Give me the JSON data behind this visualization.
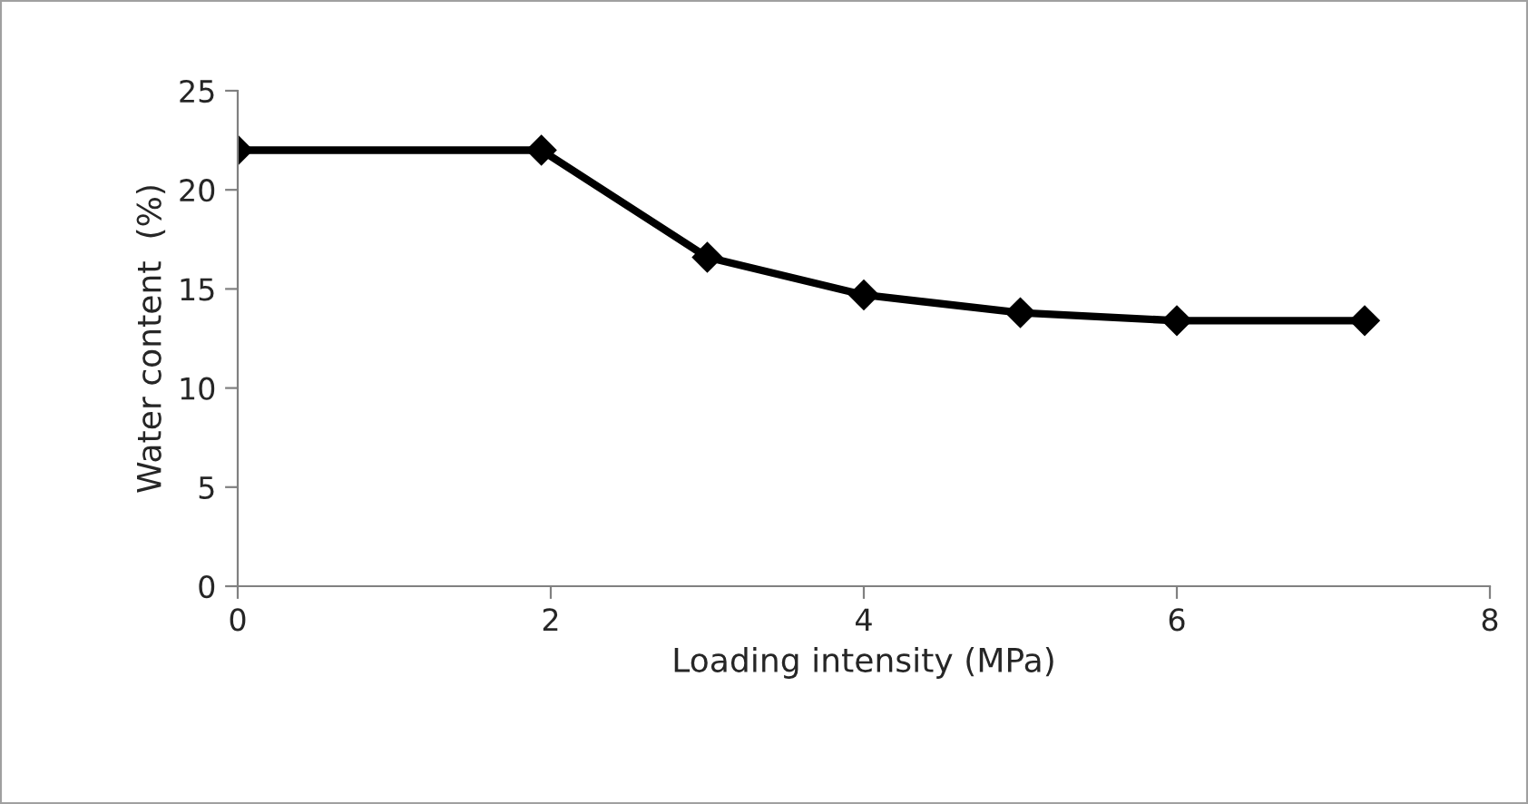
{
  "chart_data": {
    "type": "line",
    "xlabel": "Loading intensity (MPa)",
    "ylabel": "Water content  (%)",
    "x": [
      0,
      1.94,
      3.0,
      4.0,
      5.0,
      6.0,
      7.2
    ],
    "series": [
      {
        "color": "#000000",
        "values": [
          22.0,
          22.0,
          16.6,
          14.7,
          13.8,
          13.4,
          13.4
        ]
      }
    ],
    "xlim": [
      0,
      8
    ],
    "xticks": [
      0,
      2,
      4,
      6,
      8
    ],
    "ylim": [
      0,
      25
    ],
    "yticks": [
      0,
      5,
      10,
      15,
      20,
      25
    ],
    "grid": false,
    "legend": false,
    "marker": "diamond",
    "line_style": "solid"
  }
}
